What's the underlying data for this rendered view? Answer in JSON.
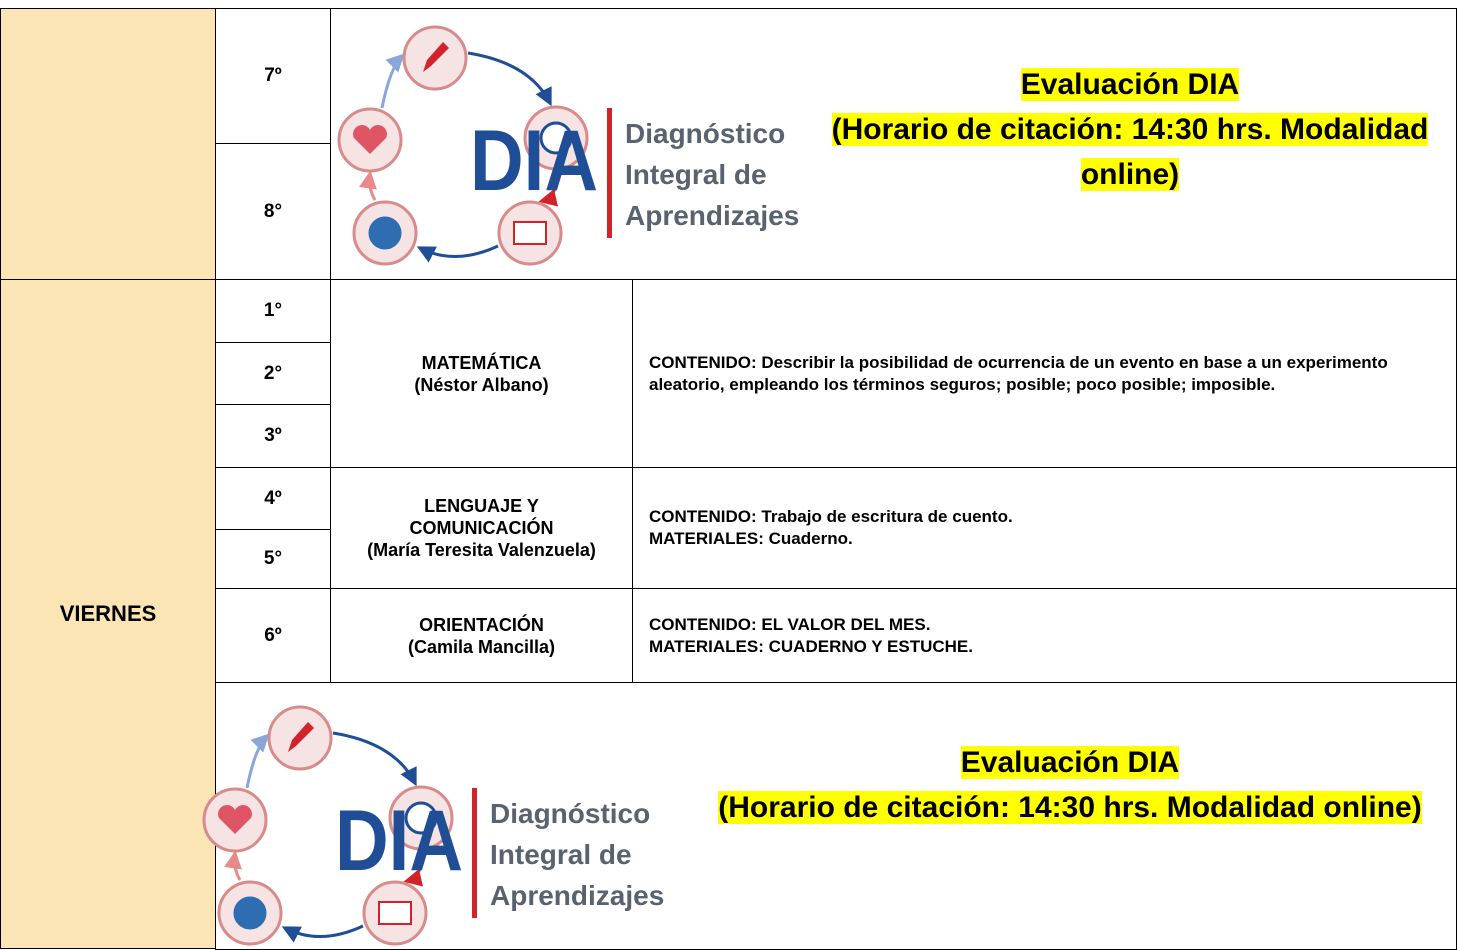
{
  "top_block": {
    "grades": [
      "7º",
      "8°"
    ],
    "logo": {
      "acronym": "DIA",
      "name": [
        "Diagnóstico",
        "Integral de",
        "Aprendizajes"
      ]
    },
    "notice": {
      "title": "Evaluación DIA",
      "detail": "(Horario de citación: 14:30 hrs. Modalidad online)"
    }
  },
  "day": "VIERNES",
  "classes": [
    {
      "grades": [
        "1°",
        "2°",
        "3º"
      ],
      "subject": [
        "MATEMÁTICA"
      ],
      "teacher": "(Néstor Albano)",
      "content": [
        "CONTENIDO: Describir la posibilidad de ocurrencia de un evento en base a un experimento aleatorio, empleando los términos seguros; posible; poco posible; imposible."
      ]
    },
    {
      "grades": [
        "4º",
        "5°"
      ],
      "subject": [
        "LENGUAJE Y",
        "COMUNICACIÓN"
      ],
      "teacher": "(María Teresita Valenzuela)",
      "content": [
        "CONTENIDO: Trabajo de escritura de cuento.",
        "MATERIALES: Cuaderno."
      ]
    },
    {
      "grades": [
        "6º"
      ],
      "subject": [
        "ORIENTACIÓN"
      ],
      "teacher": "(Camila Mancilla)",
      "content": [
        "CONTENIDO: EL VALOR DEL MES.",
        "MATERIALES: CUADERNO Y ESTUCHE."
      ]
    }
  ],
  "closing_block": {
    "logo": {
      "acronym": "DIA",
      "name": [
        "Diagnóstico",
        "Integral de",
        "Aprendizajes"
      ]
    },
    "notice": {
      "title": "Evaluación DIA",
      "detail": "(Horario de citación: 14:30 hrs. Modalidad online)"
    }
  }
}
